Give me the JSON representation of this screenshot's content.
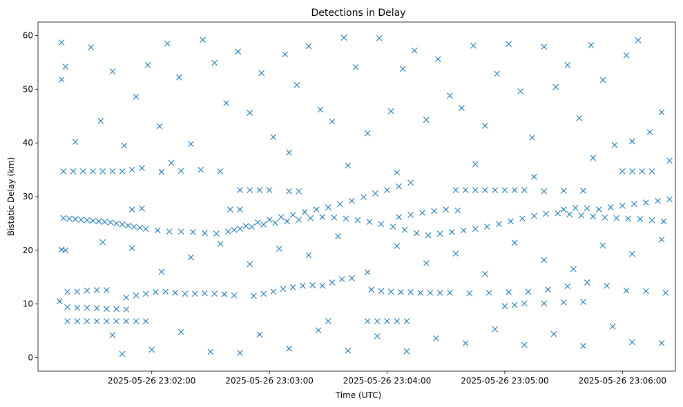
{
  "chart_data": {
    "type": "scatter",
    "title": "Detections in Delay",
    "xlabel": "Time (UTC)",
    "ylabel": "Bistatic Delay (km)",
    "marker": "x",
    "color": "#1f77b4",
    "grid": false,
    "x_tick_labels": [
      "2025-05-26 23:02:00",
      "2025-05-26 23:03:00",
      "2025-05-26 23:04:00",
      "2025-05-26 23:05:00",
      "2025-05-26 23:06:00"
    ],
    "x_range": [
      "2025-05-26 23:01:02",
      "2025-05-26 23:06:27"
    ],
    "ylim": [
      -2.5,
      62.5
    ],
    "y_ticks": [
      0,
      10,
      20,
      30,
      40,
      50,
      60
    ],
    "points": [
      [
        "2025-05-26 23:01:15",
        26.0
      ],
      [
        "2025-05-26 23:01:18",
        25.9
      ],
      [
        "2025-05-26 23:01:21",
        25.8
      ],
      [
        "2025-05-26 23:01:24",
        25.7
      ],
      [
        "2025-05-26 23:01:27",
        25.6
      ],
      [
        "2025-05-26 23:01:30",
        25.5
      ],
      [
        "2025-05-26 23:01:33",
        25.4
      ],
      [
        "2025-05-26 23:01:36",
        25.3
      ],
      [
        "2025-05-26 23:01:39",
        25.2
      ],
      [
        "2025-05-26 23:01:42",
        25.0
      ],
      [
        "2025-05-26 23:01:45",
        24.8
      ],
      [
        "2025-05-26 23:01:48",
        24.6
      ],
      [
        "2025-05-26 23:01:51",
        24.4
      ],
      [
        "2025-05-26 23:01:54",
        24.2
      ],
      [
        "2025-05-26 23:01:57",
        24.0
      ],
      [
        "2025-05-26 23:02:03",
        23.7
      ],
      [
        "2025-05-26 23:02:09",
        23.5
      ],
      [
        "2025-05-26 23:02:15",
        23.5
      ],
      [
        "2025-05-26 23:02:21",
        23.4
      ],
      [
        "2025-05-26 23:02:27",
        23.2
      ],
      [
        "2025-05-26 23:02:33",
        23.1
      ],
      [
        "2025-05-26 23:02:39",
        23.5
      ],
      [
        "2025-05-26 23:02:45",
        24.0
      ],
      [
        "2025-05-26 23:02:51",
        24.4
      ],
      [
        "2025-05-26 23:02:57",
        24.8
      ],
      [
        "2025-05-26 23:03:03",
        25.1
      ],
      [
        "2025-05-26 23:03:09",
        25.4
      ],
      [
        "2025-05-26 23:03:15",
        25.7
      ],
      [
        "2025-05-26 23:03:21",
        26.0
      ],
      [
        "2025-05-26 23:03:27",
        26.2
      ],
      [
        "2025-05-26 23:03:33",
        26.1
      ],
      [
        "2025-05-26 23:03:39",
        25.9
      ],
      [
        "2025-05-26 23:03:45",
        25.6
      ],
      [
        "2025-05-26 23:03:51",
        25.3
      ],
      [
        "2025-05-26 23:03:57",
        24.9
      ],
      [
        "2025-05-26 23:04:03",
        24.4
      ],
      [
        "2025-05-26 23:04:09",
        23.8
      ],
      [
        "2025-05-26 23:04:15",
        23.2
      ],
      [
        "2025-05-26 23:04:21",
        22.8
      ],
      [
        "2025-05-26 23:04:27",
        23.1
      ],
      [
        "2025-05-26 23:04:33",
        23.4
      ],
      [
        "2025-05-26 23:04:39",
        23.7
      ],
      [
        "2025-05-26 23:04:45",
        24.0
      ],
      [
        "2025-05-26 23:04:51",
        24.4
      ],
      [
        "2025-05-26 23:04:57",
        24.9
      ],
      [
        "2025-05-26 23:05:03",
        25.4
      ],
      [
        "2025-05-26 23:05:09",
        25.9
      ],
      [
        "2025-05-26 23:05:15",
        26.4
      ],
      [
        "2025-05-26 23:05:21",
        26.8
      ],
      [
        "2025-05-26 23:05:27",
        26.9
      ],
      [
        "2025-05-26 23:05:33",
        26.7
      ],
      [
        "2025-05-26 23:05:39",
        26.5
      ],
      [
        "2025-05-26 23:05:45",
        26.3
      ],
      [
        "2025-05-26 23:05:51",
        26.1
      ],
      [
        "2025-05-26 23:05:57",
        26.0
      ],
      [
        "2025-05-26 23:06:03",
        25.9
      ],
      [
        "2025-05-26 23:06:09",
        25.8
      ],
      [
        "2025-05-26 23:06:15",
        25.6
      ],
      [
        "2025-05-26 23:06:21",
        25.4
      ],
      [
        "2025-05-26 23:02:42",
        23.8
      ],
      [
        "2025-05-26 23:02:48",
        24.5
      ],
      [
        "2025-05-26 23:02:54",
        25.2
      ],
      [
        "2025-05-26 23:03:00",
        25.7
      ],
      [
        "2025-05-26 23:03:06",
        26.2
      ],
      [
        "2025-05-26 23:03:12",
        26.6
      ],
      [
        "2025-05-26 23:03:18",
        27.1
      ],
      [
        "2025-05-26 23:03:24",
        27.6
      ],
      [
        "2025-05-26 23:03:30",
        28.0
      ],
      [
        "2025-05-26 23:03:36",
        28.6
      ],
      [
        "2025-05-26 23:03:42",
        29.2
      ],
      [
        "2025-05-26 23:03:48",
        29.9
      ],
      [
        "2025-05-26 23:03:54",
        30.6
      ],
      [
        "2025-05-26 23:04:00",
        31.2
      ],
      [
        "2025-05-26 23:04:06",
        31.9
      ],
      [
        "2025-05-26 23:04:12",
        32.6
      ],
      [
        "2025-05-26 23:04:06",
        26.2
      ],
      [
        "2025-05-26 23:04:12",
        26.6
      ],
      [
        "2025-05-26 23:04:18",
        27.0
      ],
      [
        "2025-05-26 23:04:24",
        27.3
      ],
      [
        "2025-05-26 23:04:30",
        27.6
      ],
      [
        "2025-05-26 23:04:36",
        27.4
      ],
      [
        "2025-05-26 23:05:30",
        27.6
      ],
      [
        "2025-05-26 23:05:36",
        27.9
      ],
      [
        "2025-05-26 23:05:42",
        27.8
      ],
      [
        "2025-05-26 23:05:48",
        27.6
      ],
      [
        "2025-05-26 23:05:54",
        28.0
      ],
      [
        "2025-05-26 23:06:00",
        28.3
      ],
      [
        "2025-05-26 23:06:06",
        28.6
      ],
      [
        "2025-05-26 23:06:12",
        28.9
      ],
      [
        "2025-05-26 23:06:18",
        29.2
      ],
      [
        "2025-05-26 23:06:24",
        29.5
      ],
      [
        "2025-05-26 23:01:15",
        34.7
      ],
      [
        "2025-05-26 23:01:20",
        34.7
      ],
      [
        "2025-05-26 23:01:25",
        34.7
      ],
      [
        "2025-05-26 23:01:30",
        34.7
      ],
      [
        "2025-05-26 23:01:35",
        34.7
      ],
      [
        "2025-05-26 23:01:40",
        34.7
      ],
      [
        "2025-05-26 23:01:45",
        34.7
      ],
      [
        "2025-05-26 23:01:50",
        35.0
      ],
      [
        "2025-05-26 23:01:55",
        35.3
      ],
      [
        "2025-05-26 23:02:05",
        34.6
      ],
      [
        "2025-05-26 23:02:15",
        34.8
      ],
      [
        "2025-05-26 23:02:25",
        35.0
      ],
      [
        "2025-05-26 23:02:35",
        34.7
      ],
      [
        "2025-05-26 23:04:35",
        31.2
      ],
      [
        "2025-05-26 23:04:40",
        31.2
      ],
      [
        "2025-05-26 23:04:45",
        31.2
      ],
      [
        "2025-05-26 23:04:50",
        31.2
      ],
      [
        "2025-05-26 23:04:55",
        31.2
      ],
      [
        "2025-05-26 23:05:00",
        31.2
      ],
      [
        "2025-05-26 23:05:05",
        31.2
      ],
      [
        "2025-05-26 23:05:10",
        31.2
      ],
      [
        "2025-05-26 23:05:20",
        31.0
      ],
      [
        "2025-05-26 23:05:30",
        31.1
      ],
      [
        "2025-05-26 23:05:40",
        31.1
      ],
      [
        "2025-05-26 23:06:00",
        34.7
      ],
      [
        "2025-05-26 23:06:05",
        34.7
      ],
      [
        "2025-05-26 23:06:10",
        34.7
      ],
      [
        "2025-05-26 23:06:15",
        34.7
      ],
      [
        "2025-05-26 23:02:45",
        31.2
      ],
      [
        "2025-05-26 23:02:50",
        31.2
      ],
      [
        "2025-05-26 23:02:55",
        31.2
      ],
      [
        "2025-05-26 23:03:00",
        31.2
      ],
      [
        "2025-05-26 23:03:10",
        31.0
      ],
      [
        "2025-05-26 23:03:15",
        31.0
      ],
      [
        "2025-05-26 23:02:40",
        27.6
      ],
      [
        "2025-05-26 23:02:45",
        27.6
      ],
      [
        "2025-05-26 23:01:50",
        27.6
      ],
      [
        "2025-05-26 23:01:55",
        27.8
      ],
      [
        "2025-05-26 23:01:17",
        12.3
      ],
      [
        "2025-05-26 23:01:22",
        12.3
      ],
      [
        "2025-05-26 23:01:27",
        12.5
      ],
      [
        "2025-05-26 23:01:32",
        12.6
      ],
      [
        "2025-05-26 23:01:37",
        12.6
      ],
      [
        "2025-05-26 23:01:47",
        11.2
      ],
      [
        "2025-05-26 23:01:52",
        11.6
      ],
      [
        "2025-05-26 23:01:57",
        11.9
      ],
      [
        "2025-05-26 23:02:02",
        12.2
      ],
      [
        "2025-05-26 23:02:07",
        12.3
      ],
      [
        "2025-05-26 23:02:12",
        12.1
      ],
      [
        "2025-05-26 23:02:17",
        11.9
      ],
      [
        "2025-05-26 23:02:22",
        11.9
      ],
      [
        "2025-05-26 23:02:27",
        12.0
      ],
      [
        "2025-05-26 23:02:32",
        11.9
      ],
      [
        "2025-05-26 23:02:37",
        11.8
      ],
      [
        "2025-05-26 23:02:42",
        11.6
      ],
      [
        "2025-05-26 23:02:52",
        11.5
      ],
      [
        "2025-05-26 23:02:57",
        11.9
      ],
      [
        "2025-05-26 23:03:02",
        12.3
      ],
      [
        "2025-05-26 23:03:07",
        12.8
      ],
      [
        "2025-05-26 23:03:12",
        13.1
      ],
      [
        "2025-05-26 23:03:17",
        13.4
      ],
      [
        "2025-05-26 23:03:22",
        13.5
      ],
      [
        "2025-05-26 23:03:27",
        13.4
      ],
      [
        "2025-05-26 23:03:32",
        14.0
      ],
      [
        "2025-05-26 23:03:37",
        14.6
      ],
      [
        "2025-05-26 23:03:42",
        14.8
      ],
      [
        "2025-05-26 23:03:52",
        12.7
      ],
      [
        "2025-05-26 23:03:57",
        12.4
      ],
      [
        "2025-05-26 23:04:02",
        12.3
      ],
      [
        "2025-05-26 23:04:07",
        12.2
      ],
      [
        "2025-05-26 23:04:12",
        12.2
      ],
      [
        "2025-05-26 23:04:17",
        12.1
      ],
      [
        "2025-05-26 23:04:22",
        12.1
      ],
      [
        "2025-05-26 23:04:27",
        12.1
      ],
      [
        "2025-05-26 23:04:32",
        12.1
      ],
      [
        "2025-05-26 23:04:42",
        12.0
      ],
      [
        "2025-05-26 23:04:52",
        12.1
      ],
      [
        "2025-05-26 23:05:02",
        12.2
      ],
      [
        "2025-05-26 23:05:12",
        12.3
      ],
      [
        "2025-05-26 23:05:22",
        12.7
      ],
      [
        "2025-05-26 23:05:32",
        13.3
      ],
      [
        "2025-05-26 23:05:42",
        14.0
      ],
      [
        "2025-05-26 23:05:52",
        13.4
      ],
      [
        "2025-05-26 23:06:02",
        12.5
      ],
      [
        "2025-05-26 23:06:12",
        12.4
      ],
      [
        "2025-05-26 23:06:22",
        12.1
      ],
      [
        "2025-05-26 23:01:17",
        9.4
      ],
      [
        "2025-05-26 23:01:22",
        9.3
      ],
      [
        "2025-05-26 23:01:27",
        9.3
      ],
      [
        "2025-05-26 23:01:32",
        9.2
      ],
      [
        "2025-05-26 23:01:37",
        9.1
      ],
      [
        "2025-05-26 23:01:42",
        9.1
      ],
      [
        "2025-05-26 23:01:47",
        9.0
      ],
      [
        "2025-05-26 23:01:17",
        6.8
      ],
      [
        "2025-05-26 23:01:22",
        6.8
      ],
      [
        "2025-05-26 23:01:27",
        6.8
      ],
      [
        "2025-05-26 23:01:32",
        6.8
      ],
      [
        "2025-05-26 23:01:37",
        6.8
      ],
      [
        "2025-05-26 23:01:42",
        6.8
      ],
      [
        "2025-05-26 23:01:47",
        6.8
      ],
      [
        "2025-05-26 23:01:52",
        6.8
      ],
      [
        "2025-05-26 23:01:57",
        6.8
      ],
      [
        "2025-05-26 23:03:30",
        6.8
      ],
      [
        "2025-05-26 23:03:50",
        6.8
      ],
      [
        "2025-05-26 23:03:55",
        6.8
      ],
      [
        "2025-05-26 23:04:00",
        6.8
      ],
      [
        "2025-05-26 23:04:05",
        6.8
      ],
      [
        "2025-05-26 23:04:10",
        6.8
      ],
      [
        "2025-05-26 23:05:00",
        9.6
      ],
      [
        "2025-05-26 23:05:05",
        9.8
      ],
      [
        "2025-05-26 23:05:10",
        10.1
      ],
      [
        "2025-05-26 23:05:20",
        10.1
      ],
      [
        "2025-05-26 23:05:30",
        10.3
      ],
      [
        "2025-05-26 23:05:40",
        10.4
      ],
      [
        "2025-05-26 23:01:13",
        10.5
      ],
      [
        "2025-05-26 23:01:14",
        20.1
      ],
      [
        "2025-05-26 23:01:16",
        20.0
      ],
      [
        "2025-05-26 23:01:14",
        58.7
      ],
      [
        "2025-05-26 23:01:14",
        51.8
      ],
      [
        "2025-05-26 23:01:16",
        54.2
      ],
      [
        "2025-05-26 23:01:21",
        40.2
      ],
      [
        "2025-05-26 23:01:29",
        57.8
      ],
      [
        "2025-05-26 23:01:34",
        44.1
      ],
      [
        "2025-05-26 23:01:40",
        53.3
      ],
      [
        "2025-05-26 23:01:46",
        39.5
      ],
      [
        "2025-05-26 23:01:52",
        48.6
      ],
      [
        "2025-05-26 23:01:58",
        54.5
      ],
      [
        "2025-05-26 23:02:04",
        43.1
      ],
      [
        "2025-05-26 23:02:08",
        58.5
      ],
      [
        "2025-05-26 23:02:14",
        52.2
      ],
      [
        "2025-05-26 23:02:20",
        39.8
      ],
      [
        "2025-05-26 23:02:26",
        59.2
      ],
      [
        "2025-05-26 23:02:32",
        54.9
      ],
      [
        "2025-05-26 23:02:38",
        47.4
      ],
      [
        "2025-05-26 23:02:44",
        57.0
      ],
      [
        "2025-05-26 23:02:50",
        45.6
      ],
      [
        "2025-05-26 23:02:56",
        53.0
      ],
      [
        "2025-05-26 23:03:02",
        41.1
      ],
      [
        "2025-05-26 23:03:08",
        56.5
      ],
      [
        "2025-05-26 23:03:14",
        50.8
      ],
      [
        "2025-05-26 23:03:20",
        58.0
      ],
      [
        "2025-05-26 23:03:26",
        46.2
      ],
      [
        "2025-05-26 23:03:32",
        44.0
      ],
      [
        "2025-05-26 23:03:38",
        59.6
      ],
      [
        "2025-05-26 23:03:44",
        54.1
      ],
      [
        "2025-05-26 23:03:50",
        41.8
      ],
      [
        "2025-05-26 23:03:56",
        59.5
      ],
      [
        "2025-05-26 23:04:02",
        45.9
      ],
      [
        "2025-05-26 23:04:08",
        53.8
      ],
      [
        "2025-05-26 23:04:14",
        57.2
      ],
      [
        "2025-05-26 23:04:20",
        44.3
      ],
      [
        "2025-05-26 23:04:26",
        55.6
      ],
      [
        "2025-05-26 23:04:32",
        48.8
      ],
      [
        "2025-05-26 23:04:38",
        46.5
      ],
      [
        "2025-05-26 23:04:44",
        58.1
      ],
      [
        "2025-05-26 23:04:50",
        43.2
      ],
      [
        "2025-05-26 23:04:56",
        52.9
      ],
      [
        "2025-05-26 23:05:02",
        58.4
      ],
      [
        "2025-05-26 23:05:08",
        49.6
      ],
      [
        "2025-05-26 23:05:14",
        41.0
      ],
      [
        "2025-05-26 23:05:20",
        57.9
      ],
      [
        "2025-05-26 23:05:26",
        50.4
      ],
      [
        "2025-05-26 23:05:32",
        54.5
      ],
      [
        "2025-05-26 23:05:38",
        44.6
      ],
      [
        "2025-05-26 23:05:44",
        58.2
      ],
      [
        "2025-05-26 23:05:50",
        51.7
      ],
      [
        "2025-05-26 23:05:56",
        39.6
      ],
      [
        "2025-05-26 23:06:02",
        56.3
      ],
      [
        "2025-05-26 23:06:08",
        59.1
      ],
      [
        "2025-05-26 23:06:14",
        42.0
      ],
      [
        "2025-05-26 23:06:20",
        45.7
      ],
      [
        "2025-05-26 23:06:24",
        36.7
      ],
      [
        "2025-05-26 23:02:10",
        36.3
      ],
      [
        "2025-05-26 23:03:10",
        38.2
      ],
      [
        "2025-05-26 23:03:40",
        35.8
      ],
      [
        "2025-05-26 23:04:05",
        34.5
      ],
      [
        "2025-05-26 23:04:45",
        36.0
      ],
      [
        "2025-05-26 23:05:15",
        33.7
      ],
      [
        "2025-05-26 23:05:45",
        37.2
      ],
      [
        "2025-05-26 23:06:05",
        40.3
      ],
      [
        "2025-05-26 23:01:35",
        21.5
      ],
      [
        "2025-05-26 23:01:50",
        20.4
      ],
      [
        "2025-05-26 23:02:05",
        16.0
      ],
      [
        "2025-05-26 23:02:20",
        18.7
      ],
      [
        "2025-05-26 23:02:35",
        21.2
      ],
      [
        "2025-05-26 23:02:50",
        17.4
      ],
      [
        "2025-05-26 23:03:05",
        20.3
      ],
      [
        "2025-05-26 23:03:20",
        19.1
      ],
      [
        "2025-05-26 23:03:35",
        22.6
      ],
      [
        "2025-05-26 23:03:50",
        15.9
      ],
      [
        "2025-05-26 23:04:05",
        20.8
      ],
      [
        "2025-05-26 23:04:20",
        17.6
      ],
      [
        "2025-05-26 23:04:35",
        19.4
      ],
      [
        "2025-05-26 23:04:50",
        15.6
      ],
      [
        "2025-05-26 23:05:05",
        21.4
      ],
      [
        "2025-05-26 23:05:20",
        18.2
      ],
      [
        "2025-05-26 23:05:35",
        16.5
      ],
      [
        "2025-05-26 23:05:50",
        20.9
      ],
      [
        "2025-05-26 23:06:05",
        19.3
      ],
      [
        "2025-05-26 23:06:20",
        22.0
      ],
      [
        "2025-05-26 23:01:40",
        4.2
      ],
      [
        "2025-05-26 23:01:45",
        0.7
      ],
      [
        "2025-05-26 23:02:00",
        1.5
      ],
      [
        "2025-05-26 23:02:15",
        4.8
      ],
      [
        "2025-05-26 23:02:30",
        1.1
      ],
      [
        "2025-05-26 23:02:45",
        0.9
      ],
      [
        "2025-05-26 23:02:55",
        4.3
      ],
      [
        "2025-05-26 23:03:10",
        1.7
      ],
      [
        "2025-05-26 23:03:25",
        5.1
      ],
      [
        "2025-05-26 23:03:40",
        1.3
      ],
      [
        "2025-05-26 23:03:55",
        4.0
      ],
      [
        "2025-05-26 23:04:10",
        1.2
      ],
      [
        "2025-05-26 23:04:25",
        3.6
      ],
      [
        "2025-05-26 23:04:40",
        2.7
      ],
      [
        "2025-05-26 23:04:55",
        5.3
      ],
      [
        "2025-05-26 23:05:10",
        2.4
      ],
      [
        "2025-05-26 23:05:25",
        4.4
      ],
      [
        "2025-05-26 23:05:40",
        2.2
      ],
      [
        "2025-05-26 23:05:55",
        5.8
      ],
      [
        "2025-05-26 23:06:05",
        2.9
      ],
      [
        "2025-05-26 23:06:20",
        2.7
      ]
    ]
  }
}
